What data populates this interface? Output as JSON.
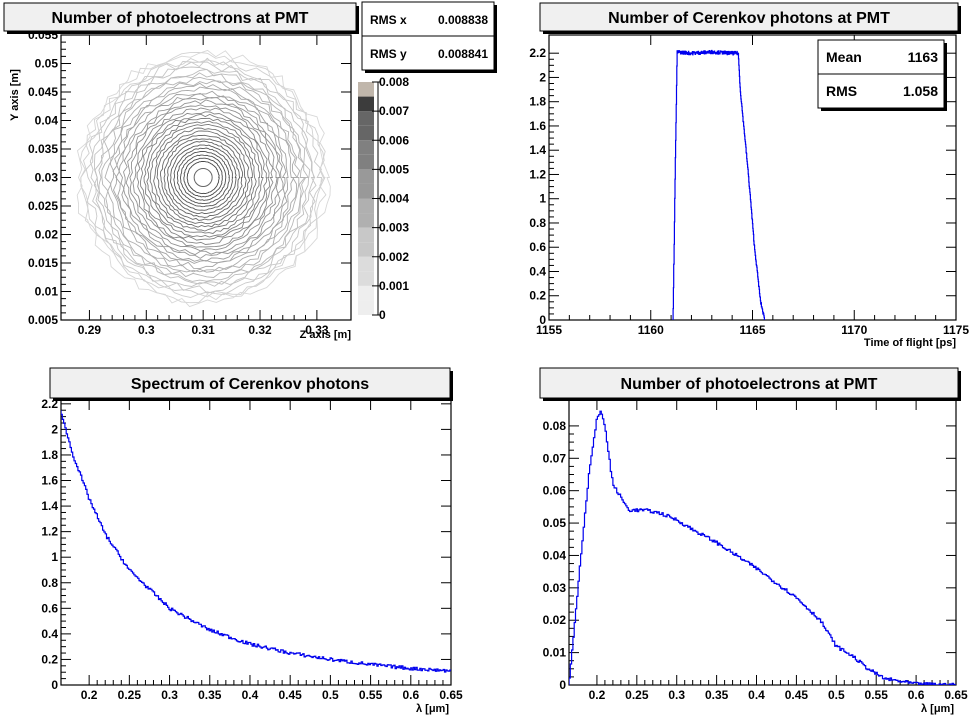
{
  "chart_data": [
    {
      "type": "contour",
      "title": "Number of photoelectrons at PMT",
      "xlabel": "Z axis [m]",
      "ylabel": "Y axis [m]",
      "xlim": [
        0.285,
        0.336
      ],
      "ylim": [
        0.005,
        0.055
      ],
      "xticks": [
        "0.29",
        "0.3",
        "0.31",
        "0.32",
        "0.33"
      ],
      "yticks": [
        "0.005",
        "0.01",
        "0.015",
        "0.02",
        "0.025",
        "0.03",
        "0.035",
        "0.04",
        "0.045",
        "0.05",
        "0.055"
      ],
      "center": [
        0.31,
        0.03
      ],
      "stats": [
        {
          "label": "RMS x",
          "value": "0.008838"
        },
        {
          "label": "RMS y",
          "value": "0.008841"
        }
      ],
      "colorbar": {
        "range": [
          0,
          0.008
        ],
        "labels": [
          "0",
          "0.001",
          "0.002",
          "0.003",
          "0.004",
          "0.005",
          "0.006",
          "0.007",
          "0.008"
        ]
      }
    },
    {
      "type": "histogram",
      "title": "Number of Cerenkov photons at PMT",
      "xlabel": "Time of flight [ps]",
      "ylabel": "",
      "xlim": [
        1155,
        1175
      ],
      "ylim": [
        0,
        2.35
      ],
      "xticks": [
        "1155",
        "1160",
        "1165",
        "1170",
        "1175"
      ],
      "yticks": [
        "0",
        "0.2",
        "0.4",
        "0.6",
        "0.8",
        "1",
        "1.2",
        "1.4",
        "1.6",
        "1.8",
        "2",
        "2.2"
      ],
      "stats": [
        {
          "label": "Mean",
          "value": "1163"
        },
        {
          "label": "RMS",
          "value": "1.058"
        }
      ],
      "line_color": "#0000ee",
      "points": [
        [
          1161.1,
          0
        ],
        [
          1161.2,
          1.2
        ],
        [
          1161.3,
          2.21
        ],
        [
          1162,
          2.2
        ],
        [
          1163,
          2.21
        ],
        [
          1164,
          2.2
        ],
        [
          1164.3,
          2.2
        ],
        [
          1164.4,
          1.9
        ],
        [
          1164.8,
          1.2
        ],
        [
          1165.1,
          0.6
        ],
        [
          1165.4,
          0.15
        ],
        [
          1165.6,
          0
        ]
      ]
    },
    {
      "type": "histogram",
      "title": "Spectrum of Cerenkov photons",
      "xlabel": "λ [μm]",
      "ylabel": "",
      "xlim": [
        0.165,
        0.65
      ],
      "ylim": [
        0,
        2.23
      ],
      "xticks": [
        "0.2",
        "0.25",
        "0.3",
        "0.35",
        "0.4",
        "0.45",
        "0.5",
        "0.55",
        "0.6",
        "0.65"
      ],
      "yticks": [
        "0",
        "0.2",
        "0.4",
        "0.6",
        "0.8",
        "1",
        "1.2",
        "1.4",
        "1.6",
        "1.8",
        "2",
        "2.2"
      ],
      "line_color": "#0000ee",
      "points": [
        [
          0.165,
          2.15
        ],
        [
          0.17,
          2.02
        ],
        [
          0.18,
          1.8
        ],
        [
          0.2,
          1.46
        ],
        [
          0.22,
          1.18
        ],
        [
          0.25,
          0.9
        ],
        [
          0.3,
          0.6
        ],
        [
          0.35,
          0.43
        ],
        [
          0.4,
          0.32
        ],
        [
          0.45,
          0.25
        ],
        [
          0.5,
          0.2
        ],
        [
          0.55,
          0.16
        ],
        [
          0.6,
          0.13
        ],
        [
          0.65,
          0.11
        ]
      ]
    },
    {
      "type": "histogram",
      "title": "Number of photoelectrons at PMT",
      "xlabel": "λ [μm]",
      "ylabel": "",
      "xlim": [
        0.165,
        0.65
      ],
      "ylim": [
        0,
        0.088
      ],
      "xticks": [
        "0.2",
        "0.25",
        "0.3",
        "0.35",
        "0.4",
        "0.45",
        "0.5",
        "0.55",
        "0.6",
        "0.65"
      ],
      "yticks": [
        "0",
        "0.01",
        "0.02",
        "0.03",
        "0.04",
        "0.05",
        "0.06",
        "0.07",
        "0.08"
      ],
      "line_color": "#0000ee",
      "points": [
        [
          0.165,
          0
        ],
        [
          0.17,
          0.013
        ],
        [
          0.18,
          0.04
        ],
        [
          0.19,
          0.065
        ],
        [
          0.2,
          0.082
        ],
        [
          0.205,
          0.085
        ],
        [
          0.21,
          0.08
        ],
        [
          0.22,
          0.062
        ],
        [
          0.23,
          0.058
        ],
        [
          0.24,
          0.054
        ],
        [
          0.26,
          0.054
        ],
        [
          0.28,
          0.053
        ],
        [
          0.3,
          0.051
        ],
        [
          0.32,
          0.048
        ],
        [
          0.35,
          0.044
        ],
        [
          0.4,
          0.036
        ],
        [
          0.45,
          0.027
        ],
        [
          0.48,
          0.02
        ],
        [
          0.5,
          0.012
        ],
        [
          0.52,
          0.009
        ],
        [
          0.54,
          0.005
        ],
        [
          0.56,
          0.002
        ],
        [
          0.6,
          0.0003
        ],
        [
          0.65,
          0
        ]
      ]
    }
  ]
}
